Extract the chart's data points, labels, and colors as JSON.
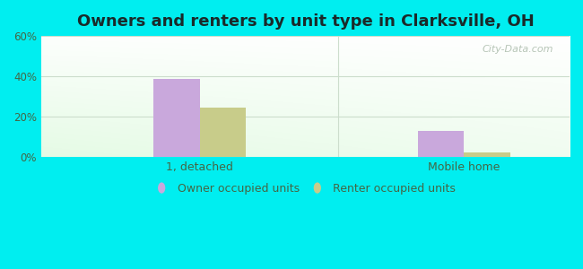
{
  "title": "Owners and renters by unit type in Clarksville, OH",
  "categories": [
    "1, detached",
    "Mobile home"
  ],
  "series": [
    {
      "name": "Owner occupied units",
      "color": "#c9a8dc",
      "values": [
        38.5,
        13.0
      ]
    },
    {
      "name": "Renter occupied units",
      "color": "#c8cc8a",
      "values": [
        24.5,
        2.0
      ]
    }
  ],
  "ylim": [
    0,
    60
  ],
  "yticks": [
    0,
    20,
    40,
    60
  ],
  "yticklabels": [
    "0%",
    "20%",
    "40%",
    "60%"
  ],
  "background_outer": "#00eef0",
  "grid_color": "#ccddcc",
  "title_fontsize": 13,
  "title_color": "#1a2a2a",
  "bar_width": 0.35,
  "watermark": "City-Data.com",
  "tick_color": "#446644",
  "legend_marker_color_owner": "#d4a8e0",
  "legend_marker_color_renter": "#ccd488"
}
